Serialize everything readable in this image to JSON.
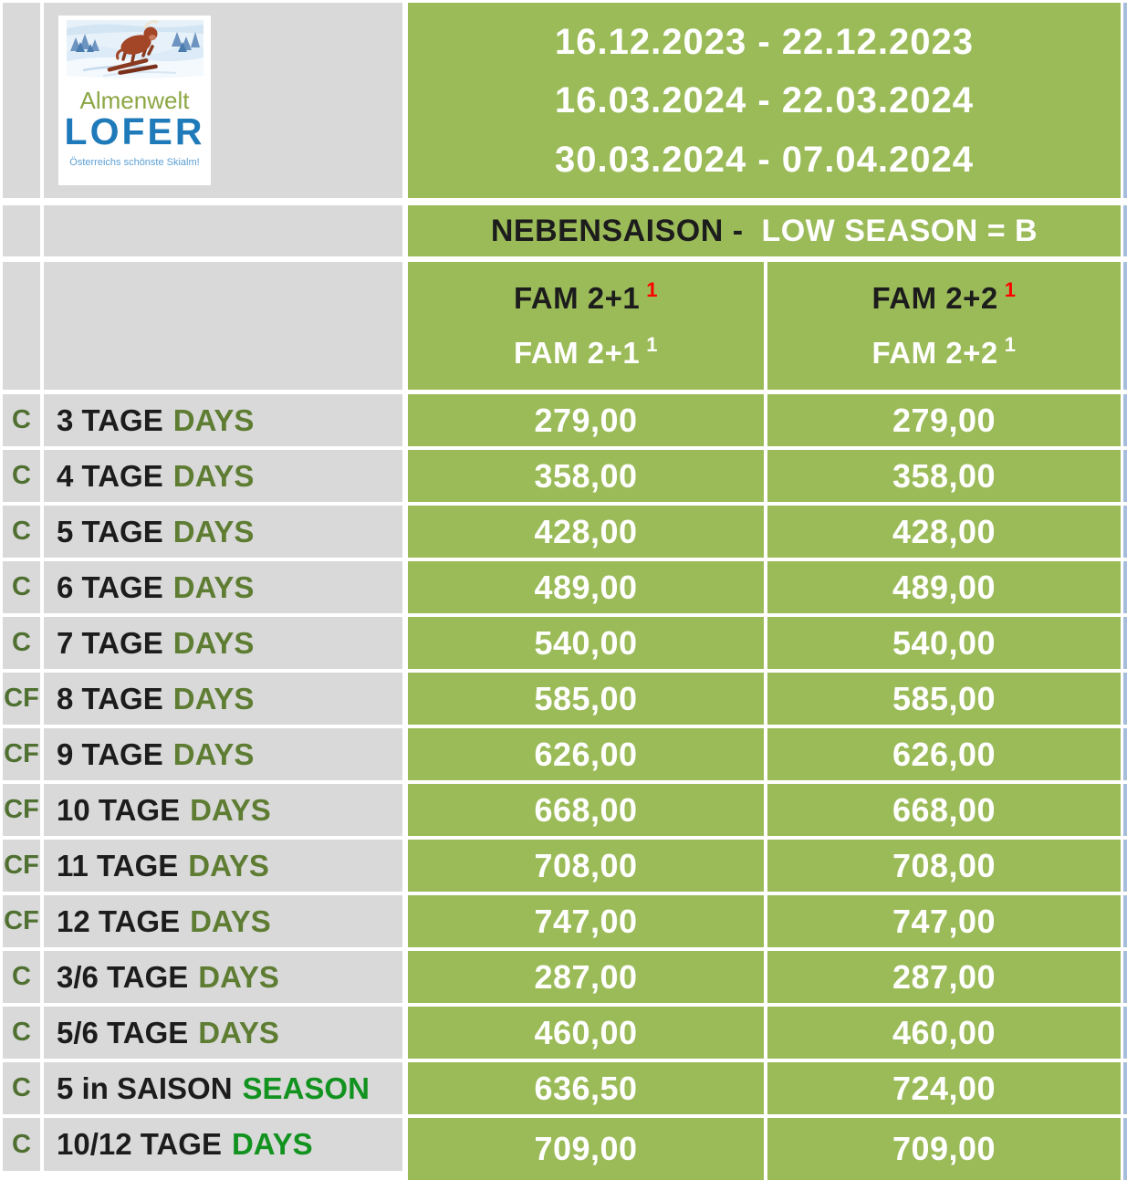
{
  "brand": {
    "name_top": "Almenwelt",
    "name_main": "LOFER",
    "tagline": "Österreichs schönste Skialm!"
  },
  "header": {
    "date_ranges": [
      "16.12.2023 - 22.12.2023",
      "16.03.2024 - 22.03.2024",
      "30.03.2024 - 07.04.2024"
    ]
  },
  "season_banner": {
    "label_de": "NEBENSAISON -",
    "label_en": "LOW SEASON = B"
  },
  "price_columns": [
    {
      "line1": "FAM 2+1",
      "line1_sup": "1",
      "line2": "FAM 2+1",
      "line2_sup": "1"
    },
    {
      "line1": "FAM 2+2",
      "line1_sup": "1",
      "line2": "FAM 2+2",
      "line2_sup": "1"
    }
  ],
  "price_rows": [
    {
      "code": "C",
      "duration": "3 TAGE",
      "duration_en": "DAYS",
      "en_style": "olive",
      "fam21": "279,00",
      "fam22": "279,00"
    },
    {
      "code": "C",
      "duration": "4 TAGE",
      "duration_en": "DAYS",
      "en_style": "olive",
      "fam21": "358,00",
      "fam22": "358,00"
    },
    {
      "code": "C",
      "duration": "5 TAGE",
      "duration_en": "DAYS",
      "en_style": "olive",
      "fam21": "428,00",
      "fam22": "428,00"
    },
    {
      "code": "C",
      "duration": "6 TAGE",
      "duration_en": "DAYS",
      "en_style": "olive",
      "fam21": "489,00",
      "fam22": "489,00"
    },
    {
      "code": "C",
      "duration": "7 TAGE",
      "duration_en": "DAYS",
      "en_style": "olive",
      "fam21": "540,00",
      "fam22": "540,00"
    },
    {
      "code": "CF",
      "duration": "8 TAGE",
      "duration_en": "DAYS",
      "en_style": "olive",
      "fam21": "585,00",
      "fam22": "585,00"
    },
    {
      "code": "CF",
      "duration": "9 TAGE",
      "duration_en": "DAYS",
      "en_style": "olive",
      "fam21": "626,00",
      "fam22": "626,00"
    },
    {
      "code": "CF",
      "duration": "10 TAGE",
      "duration_en": "DAYS",
      "en_style": "olive",
      "fam21": "668,00",
      "fam22": "668,00"
    },
    {
      "code": "CF",
      "duration": "11 TAGE",
      "duration_en": "DAYS",
      "en_style": "olive",
      "fam21": "708,00",
      "fam22": "708,00"
    },
    {
      "code": "CF",
      "duration": "12 TAGE",
      "duration_en": "DAYS",
      "en_style": "olive",
      "fam21": "747,00",
      "fam22": "747,00"
    },
    {
      "code": "C",
      "duration": "3/6 TAGE",
      "duration_en": "DAYS",
      "en_style": "olive",
      "fam21": "287,00",
      "fam22": "287,00"
    },
    {
      "code": "C",
      "duration": "5/6 TAGE",
      "duration_en": "DAYS",
      "en_style": "olive",
      "fam21": "460,00",
      "fam22": "460,00"
    },
    {
      "code": "C",
      "duration": "5 in SAISON",
      "duration_en": "SEASON",
      "en_style": "bright",
      "fam21": "636,50",
      "fam22": "724,00"
    },
    {
      "code": "C",
      "duration": "10/12 TAGE",
      "duration_en": "DAYS",
      "en_style": "bright",
      "fam21": "709,00",
      "fam22": "709,00"
    }
  ],
  "colors": {
    "table_green": "#9BBB59",
    "cell_gray": "#D9D9D9",
    "right_strip_blue": "#A7BDDC",
    "olive_text": "#5E7D33",
    "code_olive": "#4F7030",
    "bright_green_text": "#12921F",
    "black_text": "#1C1C1C",
    "footnote_red": "#FF0000",
    "white": "#FFFFFF",
    "logo_green": "#8CA643",
    "logo_blue": "#1E7AB8",
    "logo_light_blue": "#5B9FD4"
  }
}
